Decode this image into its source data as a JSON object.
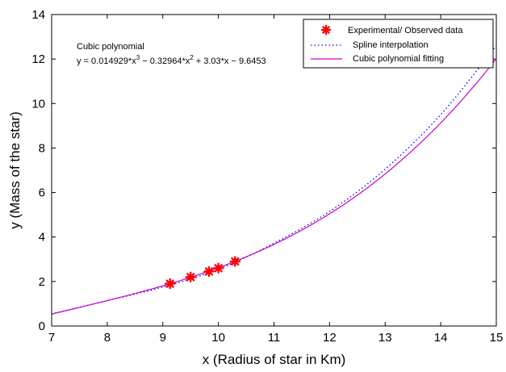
{
  "chart_data": {
    "type": "line",
    "xlabel": "x (Radius of star in Km)",
    "ylabel": "y (Mass of the star)",
    "xlim": [
      7,
      15
    ],
    "ylim": [
      0,
      14
    ],
    "xticks": [
      "7",
      "8",
      "9",
      "10",
      "11",
      "12",
      "13",
      "14",
      "15"
    ],
    "yticks": [
      "0",
      "2",
      "4",
      "6",
      "8",
      "10",
      "12",
      "14"
    ],
    "grid": false,
    "legend_position": "top-right",
    "annotation": {
      "title": "Cubic polynomial",
      "equation": {
        "p1": "y = 0.014929*x",
        "e1": "3",
        "p2": " − 0.32964*x",
        "e2": "2",
        "p3": " + 3.03*x − 9.6453"
      }
    },
    "series": [
      {
        "name": "Experimental/ Observed data",
        "kind": "scatter",
        "color": "#ff0000",
        "x": [
          9.13,
          9.5,
          9.83,
          10.0,
          10.3
        ],
        "y": [
          1.9,
          2.2,
          2.45,
          2.6,
          2.9
        ]
      },
      {
        "name": "Spline interpolation",
        "kind": "dotted-line",
        "color": "#0000ff",
        "x": [
          7,
          8,
          9,
          10,
          11,
          12,
          13,
          14,
          15
        ],
        "y": [
          0.55,
          1.14,
          1.75,
          2.55,
          3.72,
          5.15,
          7.05,
          9.5,
          12.6
        ]
      },
      {
        "name": "Cubic polynomial fitting",
        "kind": "line",
        "color": "#cc00cc",
        "coefficients": [
          0.014929,
          -0.32964,
          3.03,
          -9.6453
        ]
      }
    ]
  }
}
